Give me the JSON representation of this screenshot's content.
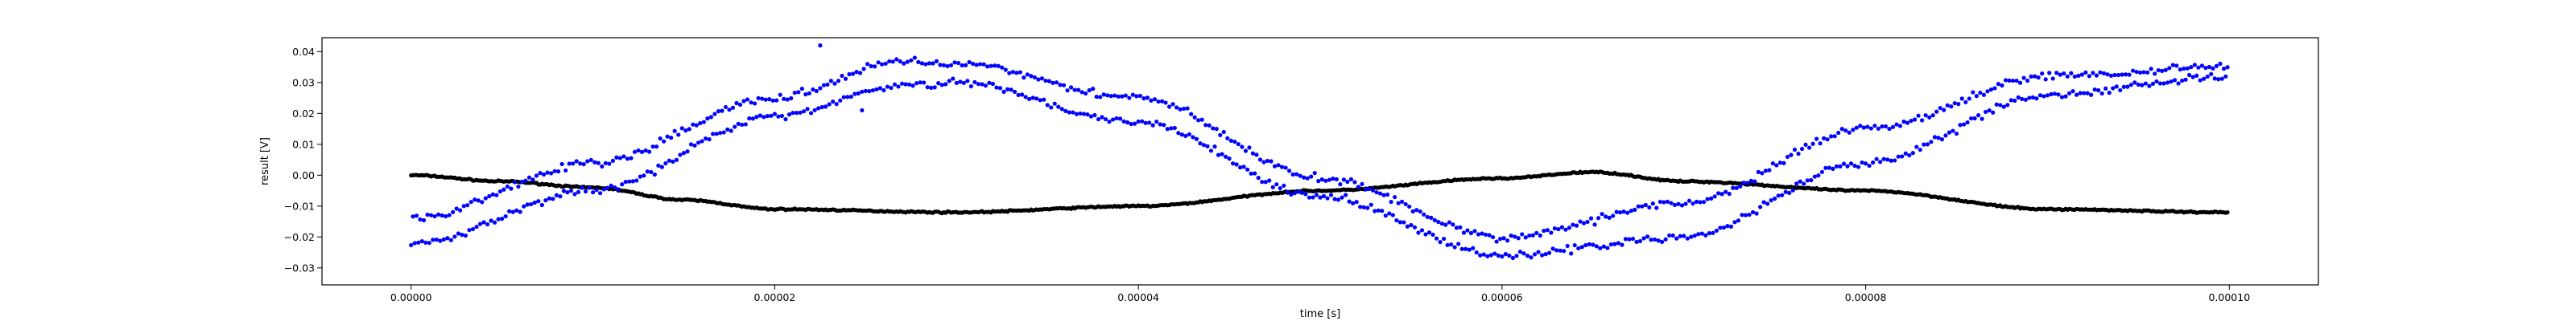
{
  "chart_data": {
    "type": "scatter",
    "title": "",
    "xlabel": "time [s]",
    "ylabel": "result [V]",
    "xlim": [
      -4.9e-06,
      0.0001049
    ],
    "ylim": [
      -0.0355,
      0.0445
    ],
    "grid": false,
    "x_ticks": [
      0,
      2e-05,
      4e-05,
      6e-05,
      8e-05,
      0.0001
    ],
    "x_tick_labels": [
      "0.00000",
      "0.00002",
      "0.00004",
      "0.00006",
      "0.00008",
      "0.00010"
    ],
    "y_ticks": [
      -0.03,
      -0.02,
      -0.01,
      0.0,
      0.01,
      0.02,
      0.03,
      0.04
    ],
    "y_tick_labels": [
      "−0.03",
      "−0.02",
      "−0.01",
      "0.00",
      "0.01",
      "0.02",
      "0.03",
      "0.04"
    ],
    "series": [
      {
        "color": "#0000ff",
        "marker": "dot",
        "points_count": 1000,
        "trace_a": {
          "x": [
            0,
            1e-05,
            2e-05,
            2.7e-05,
            3e-05,
            4e-05,
            5e-05,
            6e-05,
            7e-05,
            8e-05,
            9e-05,
            0.0001
          ],
          "y": [
            -0.022,
            -0.005,
            0.019,
            0.029,
            0.03,
            0.017,
            -0.007,
            -0.026,
            -0.02,
            0.004,
            0.026,
            0.032
          ]
        },
        "trace_b": {
          "x": [
            0,
            1e-05,
            2e-05,
            2.7e-05,
            3e-05,
            4e-05,
            5e-05,
            6e-05,
            7e-05,
            8e-05,
            9e-05,
            0.0001
          ],
          "y": [
            -0.014,
            0.004,
            0.025,
            0.037,
            0.036,
            0.025,
            -0.001,
            -0.02,
            -0.009,
            0.015,
            0.032,
            0.035
          ]
        },
        "outliers": [
          [
            2.25e-05,
            0.042
          ],
          [
            2.48e-05,
            0.021
          ]
        ]
      },
      {
        "color": "#000000",
        "marker": "dot",
        "points_count": 1000,
        "trace": {
          "x": [
            0,
            5e-06,
            1e-05,
            1.5e-05,
            2e-05,
            3e-05,
            4e-05,
            5e-05,
            6e-05,
            6.5e-05,
            7e-05,
            8e-05,
            9e-05,
            0.0001
          ],
          "y": [
            0.0,
            -0.002,
            -0.004,
            -0.008,
            -0.011,
            -0.012,
            -0.01,
            -0.005,
            -0.001,
            0.001,
            -0.002,
            -0.005,
            -0.011,
            -0.012
          ]
        }
      }
    ]
  }
}
